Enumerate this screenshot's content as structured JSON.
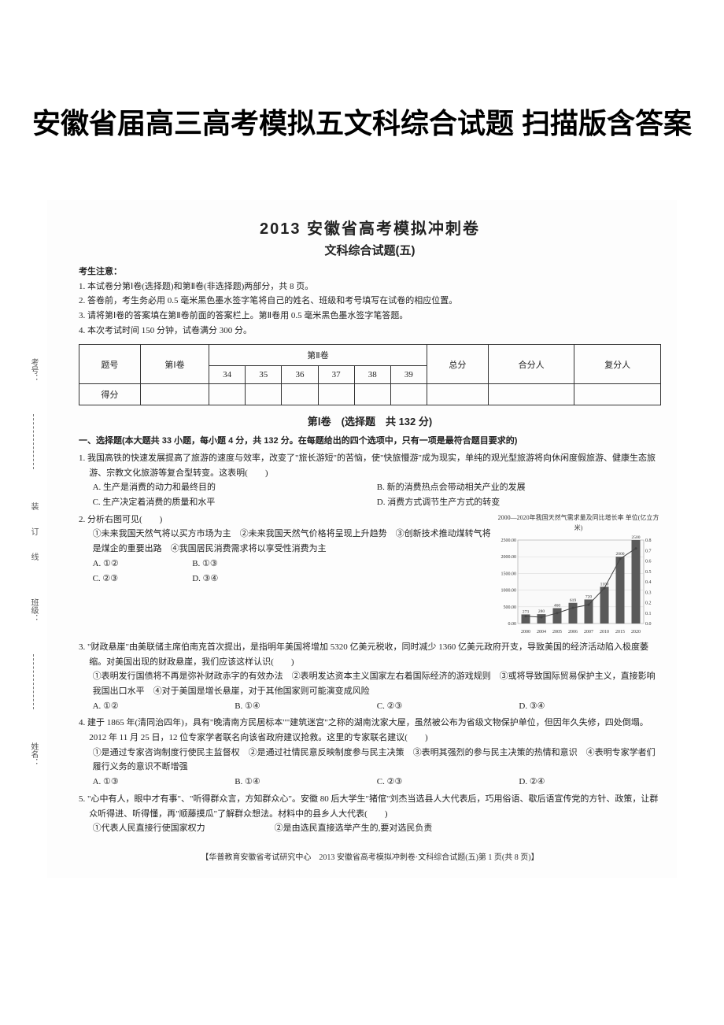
{
  "outer_title": "安徽省届高三高考模拟五文科综合试题 扫描版含答案",
  "header": {
    "year_title": "2013 安徽省高考模拟冲刺卷",
    "sub_title": "文科综合试题(五)"
  },
  "notice": {
    "label": "考生注意：",
    "items": [
      "1. 本试卷分第Ⅰ卷(选择题)和第Ⅱ卷(非选择题)两部分，共 8 页。",
      "2. 答卷前，考生务必用 0.5 毫米黑色墨水签字笔将自己的姓名、班级和考号填写在试卷的相应位置。",
      "3. 请将第Ⅰ卷的答案填在第Ⅱ卷前面的答案栏上。第Ⅱ卷用 0.5 毫米黑色墨水签字笔答题。",
      "4. 本次考试时间 150 分钟，试卷满分 300 分。"
    ]
  },
  "score_table": {
    "headers_row1": [
      "题号",
      "第Ⅰ卷",
      "第Ⅱ卷",
      "总分",
      "合分人",
      "复分人"
    ],
    "sub_headers": [
      "34",
      "35",
      "36",
      "37",
      "38",
      "39"
    ],
    "row2_label": "得分"
  },
  "section1": {
    "title": "第Ⅰ卷　(选择题　共 132 分)",
    "instruction": "一、选择题(本大题共 33 小题，每小题 4 分，共 132 分。在每题给出的四个选项中，只有一项是最符合题目要求的)"
  },
  "q1": {
    "stem": "1. 我国高铁的快速发展提高了旅游的速度与效率，改变了\"旅长游短\"的苦恼，使\"快旅慢游\"成为现实，单纯的观光型旅游将向休闲度假旅游、健康生态旅游、宗教文化旅游等复合型转变。这表明(　　)",
    "opts": [
      "A. 生产是消费的动力和最终目的",
      "B. 新的消费热点会带动相关产业的发展",
      "C. 生产决定着消费的质量和水平",
      "D. 消费方式调节生产方式的转变"
    ]
  },
  "q2": {
    "stem": "2. 分析右图可见(　　)",
    "subs": "①未来我国天然气将以买方市场为主　②未来我国天然气价格将呈现上升趋势　③创新技术推动煤转气将是煤企的重要出路　④我国居民消费需求将以享受性消费为主",
    "opts": [
      "A. ①②",
      "B. ①③",
      "C. ②③",
      "D. ③④"
    ]
  },
  "chart": {
    "title": "2000—2020年我国天然气需求量及同比增长率 单位(亿立方米)",
    "y_left_max": 2500,
    "y_left_step": 500,
    "y_right_max": 0.8,
    "years": [
      "2000",
      "2004",
      "2005",
      "2006",
      "2007",
      "2010",
      "2015",
      "2020"
    ],
    "bars": [
      273,
      280,
      460,
      619,
      720,
      1100,
      2000,
      2500
    ],
    "line": [
      0.07,
      0.06,
      0.1,
      0.15,
      0.18,
      0.34,
      0.62,
      0.72
    ],
    "bar_color": "#5a5a5a",
    "line_color": "#444",
    "grid_color": "#cccccc",
    "bg": "#fafafa"
  },
  "q3": {
    "stem": "3. \"财政悬崖\"由美联储主席伯南克首次提出，是指明年美国将增加 5320 亿美元税收，同时减少 1360 亿美元政府开支，导致美国的经济活动陷入极度萎缩。对美国出现的财政悬崖，我们应该这样认识(　　)",
    "subs": "①表明发行国债将不再是弥补财政赤字的有效办法　②表明发达资本主义国家左右着国际经济的游戏规则　③或将导致国际贸易保护主义，直接影响我国出口水平　④对于美国是增长悬崖，对于其他国家则可能演变成风险",
    "opts": [
      "A. ①②",
      "B. ①④",
      "C. ②③",
      "D. ③④"
    ]
  },
  "q4": {
    "stem": "4. 建于 1865 年(清同治四年)，具有\"晚清南方民居标本\"\"建筑迷宫\"之称的湖南沈家大屋，虽然被公布为省级文物保护单位，但因年久失修，四处倒塌。2012 年 11 月 25 日，12 位专家学者联名向该省政府建议抢救。这里的专家联名建议(　　)",
    "subs": "①是通过专家咨询制度行使民主监督权　②是通过社情民意反映制度参与民主决策　③表明其强烈的参与民主决策的热情和意识　④表明专家学者们履行义务的意识不断增强",
    "opts": [
      "A. ①③",
      "B. ①④",
      "C. ②③",
      "D. ②④"
    ]
  },
  "q5": {
    "stem": "5. \"心中有人，眼中才有事\"、\"听得群众言，方知群众心\"。安徽 80 后大学生\"猪倌\"刘杰当选县人大代表后，巧用俗语、歇后语宣传党的方针、政策，让群众听得进、听得懂，再\"顺藤摸瓜\"了解群众想法。材料中的县乡人大代表(　　)",
    "subs": "①代表人民直接行使国家权力　　　　　　　　②是由选民直接选举产生的,要对选民负责"
  },
  "footer": "【华普教育安徽省考试研究中心　2013 安徽省高考模拟冲刺卷·文科综合试题(五)第 1 页(共 8 页)】",
  "binding": {
    "labels": [
      "考号：",
      "班级：",
      "姓名："
    ],
    "line_text": "装　订　线"
  }
}
